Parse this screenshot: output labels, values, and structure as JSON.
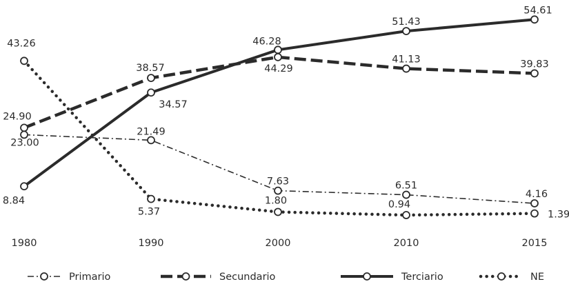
{
  "chart_data": {
    "type": "line",
    "title": "",
    "xlabel": "",
    "ylabel": "",
    "x": [
      "1980",
      "1990",
      "2000",
      "2010",
      "2015"
    ],
    "ylim": [
      0,
      56
    ],
    "grid": false,
    "legend_position": "bottom",
    "series": [
      {
        "name": "Primario",
        "values": [
          23.0,
          21.49,
          7.63,
          6.51,
          4.16
        ],
        "labels": [
          "23.00",
          "21.49",
          "7.63",
          "6.51",
          "4.16"
        ],
        "line_style": "dash-dot",
        "color": "#2b2b2b"
      },
      {
        "name": "Secundario",
        "values": [
          24.9,
          38.57,
          44.29,
          41.13,
          39.83
        ],
        "labels": [
          "24.90",
          "38.57",
          "44.29",
          "41.13",
          "39.83"
        ],
        "line_style": "dashed",
        "color": "#2b2b2b"
      },
      {
        "name": "Terciario",
        "values": [
          8.84,
          34.57,
          46.28,
          51.43,
          54.61
        ],
        "labels": [
          "8.84",
          "34.57",
          "46.28",
          "51.43",
          "54.61"
        ],
        "line_style": "solid",
        "color": "#2b2b2b"
      },
      {
        "name": "NE",
        "values": [
          43.26,
          5.37,
          1.8,
          0.94,
          1.39
        ],
        "labels": [
          "43.26",
          "5.37",
          "1.80",
          "0.94",
          "1.39"
        ],
        "line_style": "dotted",
        "color": "#2b2b2b"
      }
    ]
  }
}
